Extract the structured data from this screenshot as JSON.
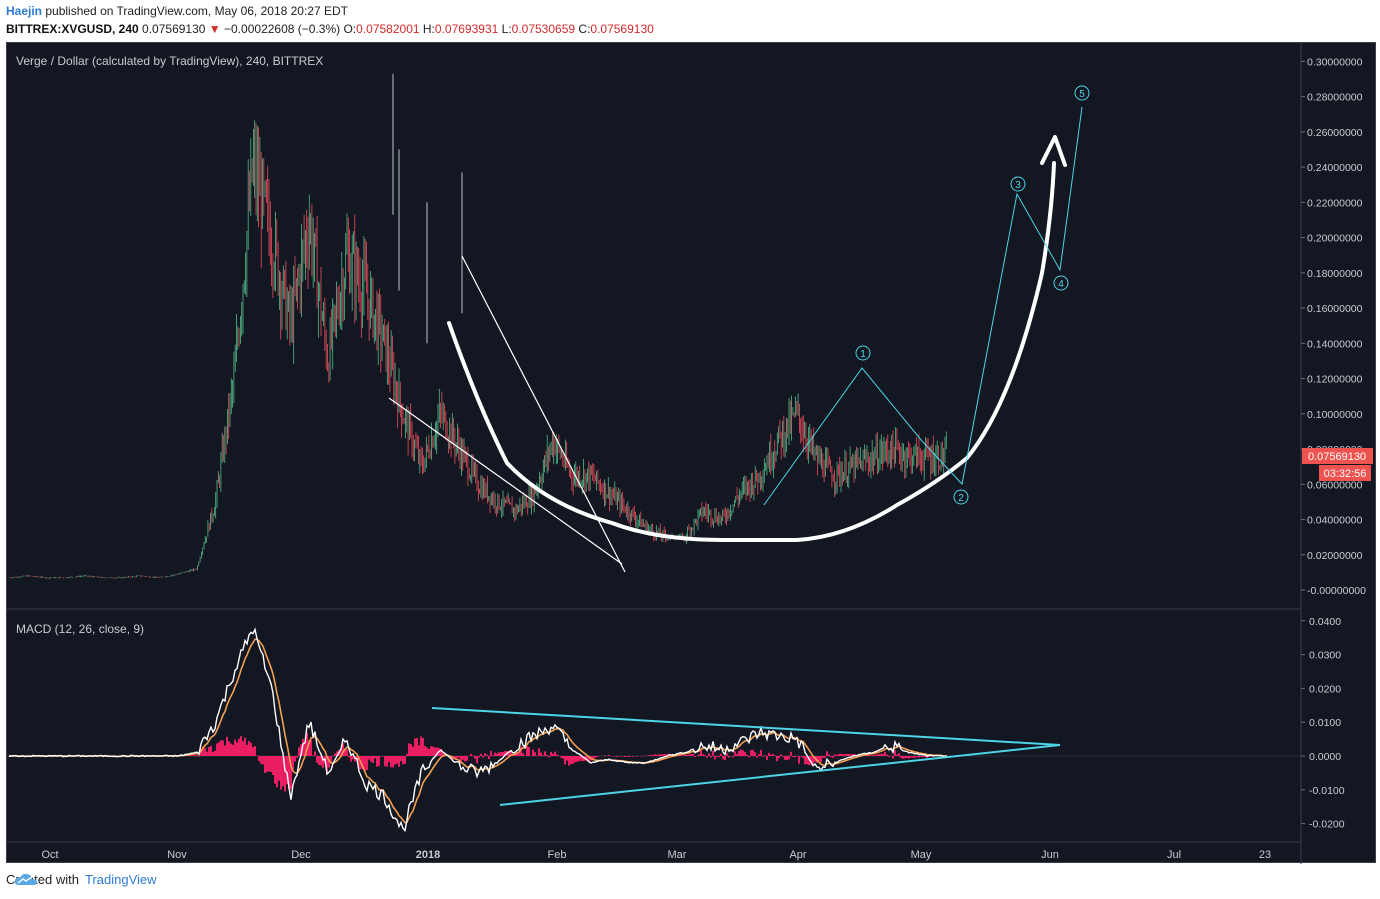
{
  "header": {
    "author": "Haejin",
    "published_text": "published on TradingView.com, May 06, 2018 20:27 EDT",
    "symbol": "BITTREX:XVGUSD, 240",
    "price": "0.07569130",
    "change": "−0.00022608 (−0.3%)",
    "open_label": "O:",
    "open": "0.07582001",
    "high_label": "H:",
    "high": "0.07693931",
    "low_label": "L:",
    "low": "0.07530659",
    "close_label": "C:",
    "close": "0.07569130"
  },
  "chart_title": "Verge / Dollar (calculated by TradingView), 240, BITTREX",
  "macd_title": "MACD (12, 26, close, 9)",
  "price_badge": "0.07569130",
  "countdown_badge": "03:32:56",
  "wave_labels": [
    "1",
    "2",
    "3",
    "4",
    "5"
  ],
  "footer": {
    "created_with": "Created with",
    "brand": "TradingView"
  },
  "colors": {
    "background": "#131722",
    "candle_up": "#53b987",
    "candle_down": "#eb4d5c",
    "cyan": "#4dd4e6",
    "macd_line": "#ffffff",
    "signal_line": "#f0a050",
    "histogram": "#e91e63",
    "price_badge": "#ef5350"
  },
  "chart_data": [
    {
      "type": "line",
      "title": "Verge / Dollar (calculated by TradingView), 240, BITTREX",
      "x_ticks": [
        "Oct",
        "Nov",
        "Dec",
        "2018",
        "Feb",
        "Mar",
        "Apr",
        "May",
        "Jun",
        "Jul",
        "23"
      ],
      "y_ticks": [
        "0.30000000",
        "0.28000000",
        "0.26000000",
        "0.24000000",
        "0.22000000",
        "0.20000000",
        "0.18000000",
        "0.16000000",
        "0.14000000",
        "0.12000000",
        "0.10000000",
        "0.08000000",
        "0.06000000",
        "0.04000000",
        "0.02000000",
        "-0.00000000"
      ],
      "ylim": [
        -0.005,
        0.305
      ],
      "series": [
        {
          "values_x_index": [
            0,
            1,
            2,
            3,
            4,
            5,
            6,
            7,
            8,
            9,
            10,
            11,
            12,
            13,
            14,
            15,
            16,
            17,
            18,
            19,
            20,
            21,
            22,
            23,
            24,
            25,
            26,
            27,
            28,
            29,
            30,
            31,
            32,
            33,
            34,
            35,
            36,
            37,
            38,
            39,
            40,
            41,
            42,
            43,
            44,
            45,
            46,
            47,
            48,
            49,
            50
          ],
          "values": [
            0.007,
            0.008,
            0.007,
            0.007,
            0.008,
            0.007,
            0.007,
            0.008,
            0.007,
            0.009,
            0.012,
            0.05,
            0.12,
            0.24,
            0.2,
            0.15,
            0.21,
            0.13,
            0.19,
            0.17,
            0.14,
            0.1,
            0.07,
            0.1,
            0.08,
            0.06,
            0.05,
            0.045,
            0.055,
            0.085,
            0.065,
            0.065,
            0.055,
            0.045,
            0.035,
            0.03,
            0.03,
            0.045,
            0.04,
            0.055,
            0.065,
            0.085,
            0.1,
            0.075,
            0.065,
            0.07,
            0.075,
            0.08,
            0.076,
            0.0757,
            0.0757
          ]
        }
      ],
      "annotations": {
        "projection_path": [
          0.06,
          0.125,
          0.06,
          0.22,
          0.18,
          0.275
        ],
        "wave_labels": [
          "1",
          "2",
          "3",
          "4",
          "5"
        ]
      }
    },
    {
      "type": "line",
      "title": "MACD (12, 26, close, 9)",
      "y_ticks": [
        "0.0400",
        "0.0300",
        "0.0200",
        "0.0100",
        "0.0000",
        "-0.0100",
        "-0.0200"
      ],
      "ylim": [
        -0.024,
        0.041
      ],
      "series": [
        {
          "name": "",
          "values": [
            0,
            0,
            0,
            0,
            0,
            0,
            0,
            0,
            0,
            0,
            0.001,
            0.01,
            0.025,
            0.038,
            0.02,
            -0.012,
            0.01,
            -0.005,
            0.005,
            -0.008,
            -0.012,
            -0.022,
            -0.005,
            0.002,
            -0.003,
            -0.005,
            -0.002,
            0.003,
            0.006,
            0.009,
            0.002,
            -0.002,
            -0.001,
            -0.002,
            -0.002,
            0,
            0.001,
            0.003,
            0.002,
            0.004,
            0.007,
            0.006,
            0.005,
            -0.004,
            -0.002,
            0,
            0.001,
            0.003,
            0.001,
            0,
            0
          ]
        }
      ]
    }
  ]
}
